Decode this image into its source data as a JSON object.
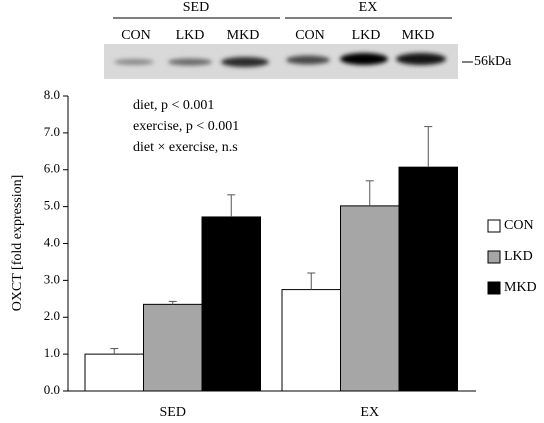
{
  "blot": {
    "groups": [
      "SED",
      "EX"
    ],
    "lanes": [
      "CON",
      "LKD",
      "MKD",
      "CON",
      "LKD",
      "MKD"
    ],
    "marker": "56kDa"
  },
  "chart_data": {
    "type": "bar",
    "y_label": "OXCT [fold expression]",
    "annotations": [
      "diet, p < 0.001",
      "exercise, p < 0.001",
      "diet × exercise, n.s"
    ],
    "categories": [
      "SED",
      "EX"
    ],
    "series": [
      {
        "name": "CON",
        "color": "#ffffff",
        "values": [
          1.0,
          2.75
        ],
        "errors": [
          0.15,
          0.45
        ]
      },
      {
        "name": "LKD",
        "color": "#a6a6a6",
        "values": [
          2.35,
          5.02
        ],
        "errors": [
          0.08,
          0.68
        ]
      },
      {
        "name": "MKD",
        "color": "#000000",
        "values": [
          4.72,
          6.07
        ],
        "errors": [
          0.6,
          1.1
        ]
      }
    ],
    "ylim": [
      0,
      8
    ],
    "yticks": [
      {
        "value": 0,
        "label": "0.0"
      },
      {
        "value": 1,
        "label": "1.0"
      },
      {
        "value": 2,
        "label": "2.0"
      },
      {
        "value": 3,
        "label": "3.0"
      },
      {
        "value": 4,
        "label": "4.0"
      },
      {
        "value": 5,
        "label": "5.0"
      },
      {
        "value": 6,
        "label": "6.0"
      },
      {
        "value": 7,
        "label": "7.0"
      },
      {
        "value": 8,
        "label": "8.0"
      }
    ],
    "legend": "right"
  }
}
